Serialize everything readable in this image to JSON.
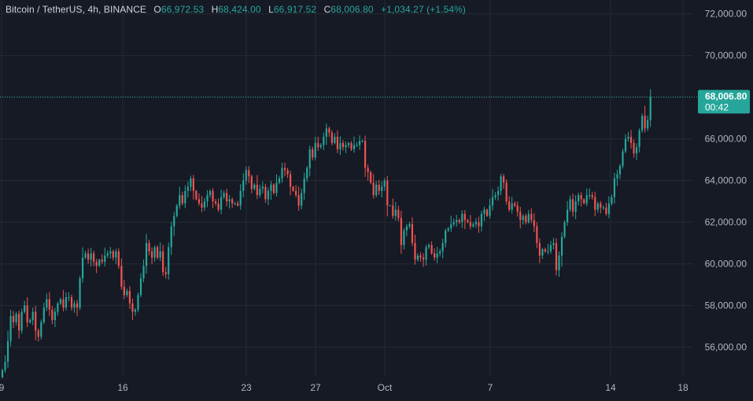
{
  "legend": {
    "symbol": "Bitcoin / TetherUS, 4h, BINANCE",
    "o_label": "O",
    "o_value": "66,972.53",
    "h_label": "H",
    "h_value": "68,424.00",
    "l_label": "L",
    "l_value": "66,917.52",
    "c_label": "C",
    "c_value": "68,006.80",
    "change": "+1,034.27 (+1.54%)"
  },
  "price_badge": {
    "price": "68,006.80",
    "countdown": "00:42"
  },
  "colors": {
    "background": "#161a25",
    "grid": "#262a35",
    "up": "#26a69a",
    "down": "#ef5350",
    "text": "#d1d4dc",
    "axis_text": "#b2b5be"
  },
  "chart_data": {
    "type": "candlestick",
    "title": "Bitcoin / TetherUS, 4h, BINANCE",
    "x_ticks": [
      "9",
      "16",
      "23",
      "27",
      "Oct",
      "7",
      "14",
      "18"
    ],
    "y_ticks": [
      "72,000.00",
      "70,000.00",
      "68,000.00",
      "66,000.00",
      "64,000.00",
      "62,000.00",
      "60,000.00",
      "58,000.00",
      "56,000.00"
    ],
    "ylim": [
      54600,
      72600
    ],
    "last_price": 68006.8,
    "grid": true,
    "close_series": [
      54900,
      55300,
      56300,
      57500,
      57200,
      57600,
      56800,
      57700,
      58000,
      57200,
      57300,
      57700,
      56800,
      56500,
      57200,
      57900,
      58300,
      57800,
      57300,
      57700,
      58100,
      58300,
      57900,
      58400,
      58400,
      57900,
      58100,
      57900,
      59300,
      60300,
      60500,
      60200,
      60500,
      60100,
      59900,
      60200,
      60100,
      60400,
      60500,
      60600,
      60300,
      60600,
      59900,
      58900,
      58500,
      58700,
      58100,
      57700,
      57800,
      58500,
      59300,
      59900,
      61000,
      60600,
      60300,
      60800,
      60300,
      60600,
      59600,
      59500,
      60800,
      61800,
      62300,
      62800,
      63300,
      62900,
      63500,
      63700,
      64100,
      63500,
      63100,
      62900,
      62700,
      63000,
      63300,
      63500,
      63000,
      62900,
      62600,
      63200,
      63400,
      63000,
      63100,
      62900,
      62900,
      62800,
      63500,
      64000,
      64500,
      64200,
      63600,
      63800,
      63300,
      63600,
      63700,
      63100,
      63500,
      63800,
      63400,
      63900,
      64100,
      64600,
      64500,
      64300,
      63700,
      63500,
      63300,
      62800,
      63400,
      64100,
      64600,
      65500,
      65100,
      65800,
      65600,
      65700,
      66100,
      66500,
      66300,
      65800,
      66100,
      65500,
      65800,
      65600,
      65700,
      65800,
      65500,
      65700,
      65700,
      65900,
      65900,
      64600,
      64400,
      63900,
      63300,
      63800,
      63500,
      63700,
      64000,
      62800,
      62800,
      62300,
      62600,
      62200,
      60900,
      61600,
      61800,
      61900,
      61000,
      60200,
      60400,
      60300,
      60200,
      60800,
      60900,
      60500,
      60300,
      60500,
      60600,
      61000,
      61600,
      61700,
      61900,
      62000,
      62100,
      62000,
      62400,
      62100,
      62000,
      61800,
      61900,
      62000,
      61800,
      62400,
      62600,
      62300,
      62800,
      63200,
      63300,
      63500,
      64200,
      63900,
      63000,
      62600,
      62900,
      62800,
      62500,
      62100,
      62300,
      62000,
      62400,
      62100,
      61800,
      61000,
      60400,
      60700,
      60600,
      60600,
      60900,
      61000,
      59700,
      60400,
      61300,
      62000,
      62600,
      63100,
      62500,
      63000,
      63300,
      63100,
      62900,
      63300,
      63300,
      63200,
      62600,
      62900,
      62700,
      62700,
      62400,
      62900,
      63200,
      64100,
      64300,
      64700,
      65400,
      66000,
      66100,
      65800,
      65300,
      65600,
      66400,
      67100,
      66500,
      66900,
      68000
    ]
  }
}
